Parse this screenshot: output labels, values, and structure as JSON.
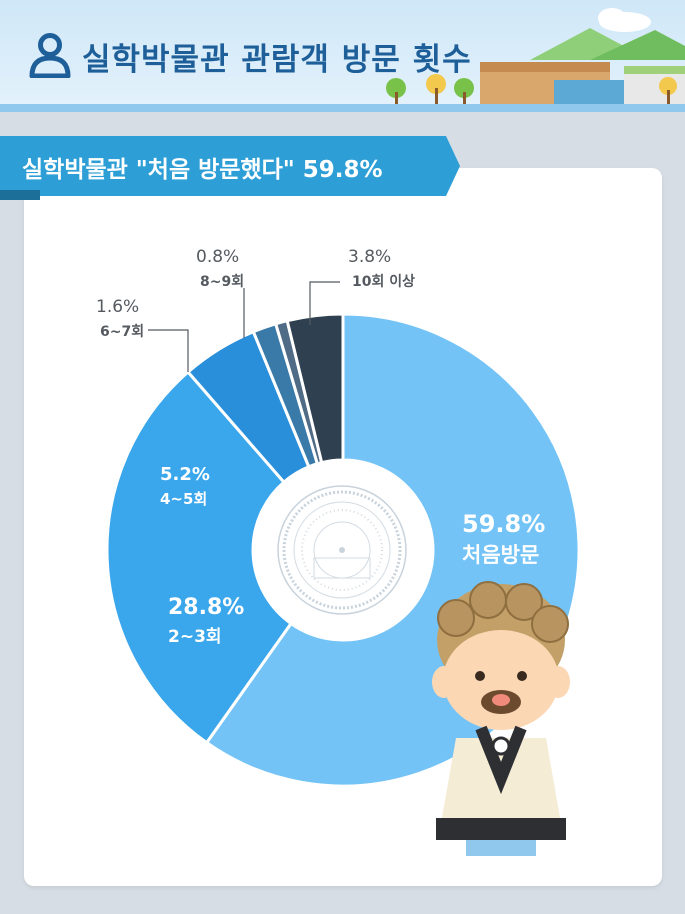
{
  "header": {
    "title": "실학박물관 관람객 방문 횟수"
  },
  "subtitle": {
    "text": "실학박물관 \"처음 방문했다\" 59.8%"
  },
  "colors": {
    "header_title": "#1e5f99",
    "subtitle_bg": "#2e9fd6",
    "slices": [
      "#73c3f7",
      "#3aa6ec",
      "#2a8fdb",
      "#3a7aa8",
      "#4f6b85",
      "#2f4050"
    ]
  },
  "chart_data": {
    "type": "pie",
    "donut": true,
    "title": "실학박물관 \"처음 방문했다\" 59.8%",
    "slices": [
      {
        "label": "처음방문",
        "value": 59.8,
        "display": "59.8%"
      },
      {
        "label": "2~3회",
        "value": 28.8,
        "display": "28.8%"
      },
      {
        "label": "4~5회",
        "value": 5.2,
        "display": "5.2%"
      },
      {
        "label": "6~7회",
        "value": 1.6,
        "display": "1.6%"
      },
      {
        "label": "8~9회",
        "value": 0.8,
        "display": "0.8%"
      },
      {
        "label": "10회 이상",
        "value": 3.8,
        "display": "3.8%"
      }
    ]
  }
}
